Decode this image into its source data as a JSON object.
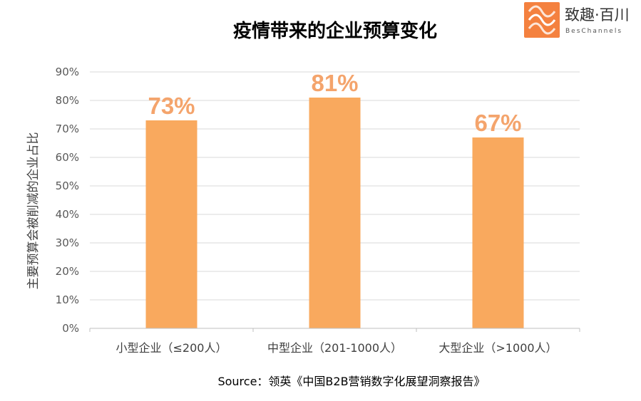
{
  "brand": {
    "name_cn": "致趣·百川",
    "name_en": "BesChannels",
    "logo_color": "#f4813f"
  },
  "source": "Source：领英《中国B2B营销数字化展望洞察报告》",
  "chart_data": {
    "type": "bar",
    "title": "疫情带来的企业预算变化",
    "xlabel": "",
    "ylabel": "主要预算会被削减的企业占比",
    "categories": [
      "小型企业（≤200人）",
      "中型企业（201-1000人）",
      "大型企业（>1000人）"
    ],
    "values": [
      73,
      81,
      67
    ],
    "data_labels": [
      "73%",
      "81%",
      "67%"
    ],
    "ylim": [
      0,
      90
    ],
    "y_ticks": [
      "0%",
      "10%",
      "20%",
      "30%",
      "40%",
      "50%",
      "60%",
      "70%",
      "80%",
      "90%"
    ],
    "grid": true,
    "bar_color": "#f9a95e",
    "label_color": "#f4a46c"
  }
}
